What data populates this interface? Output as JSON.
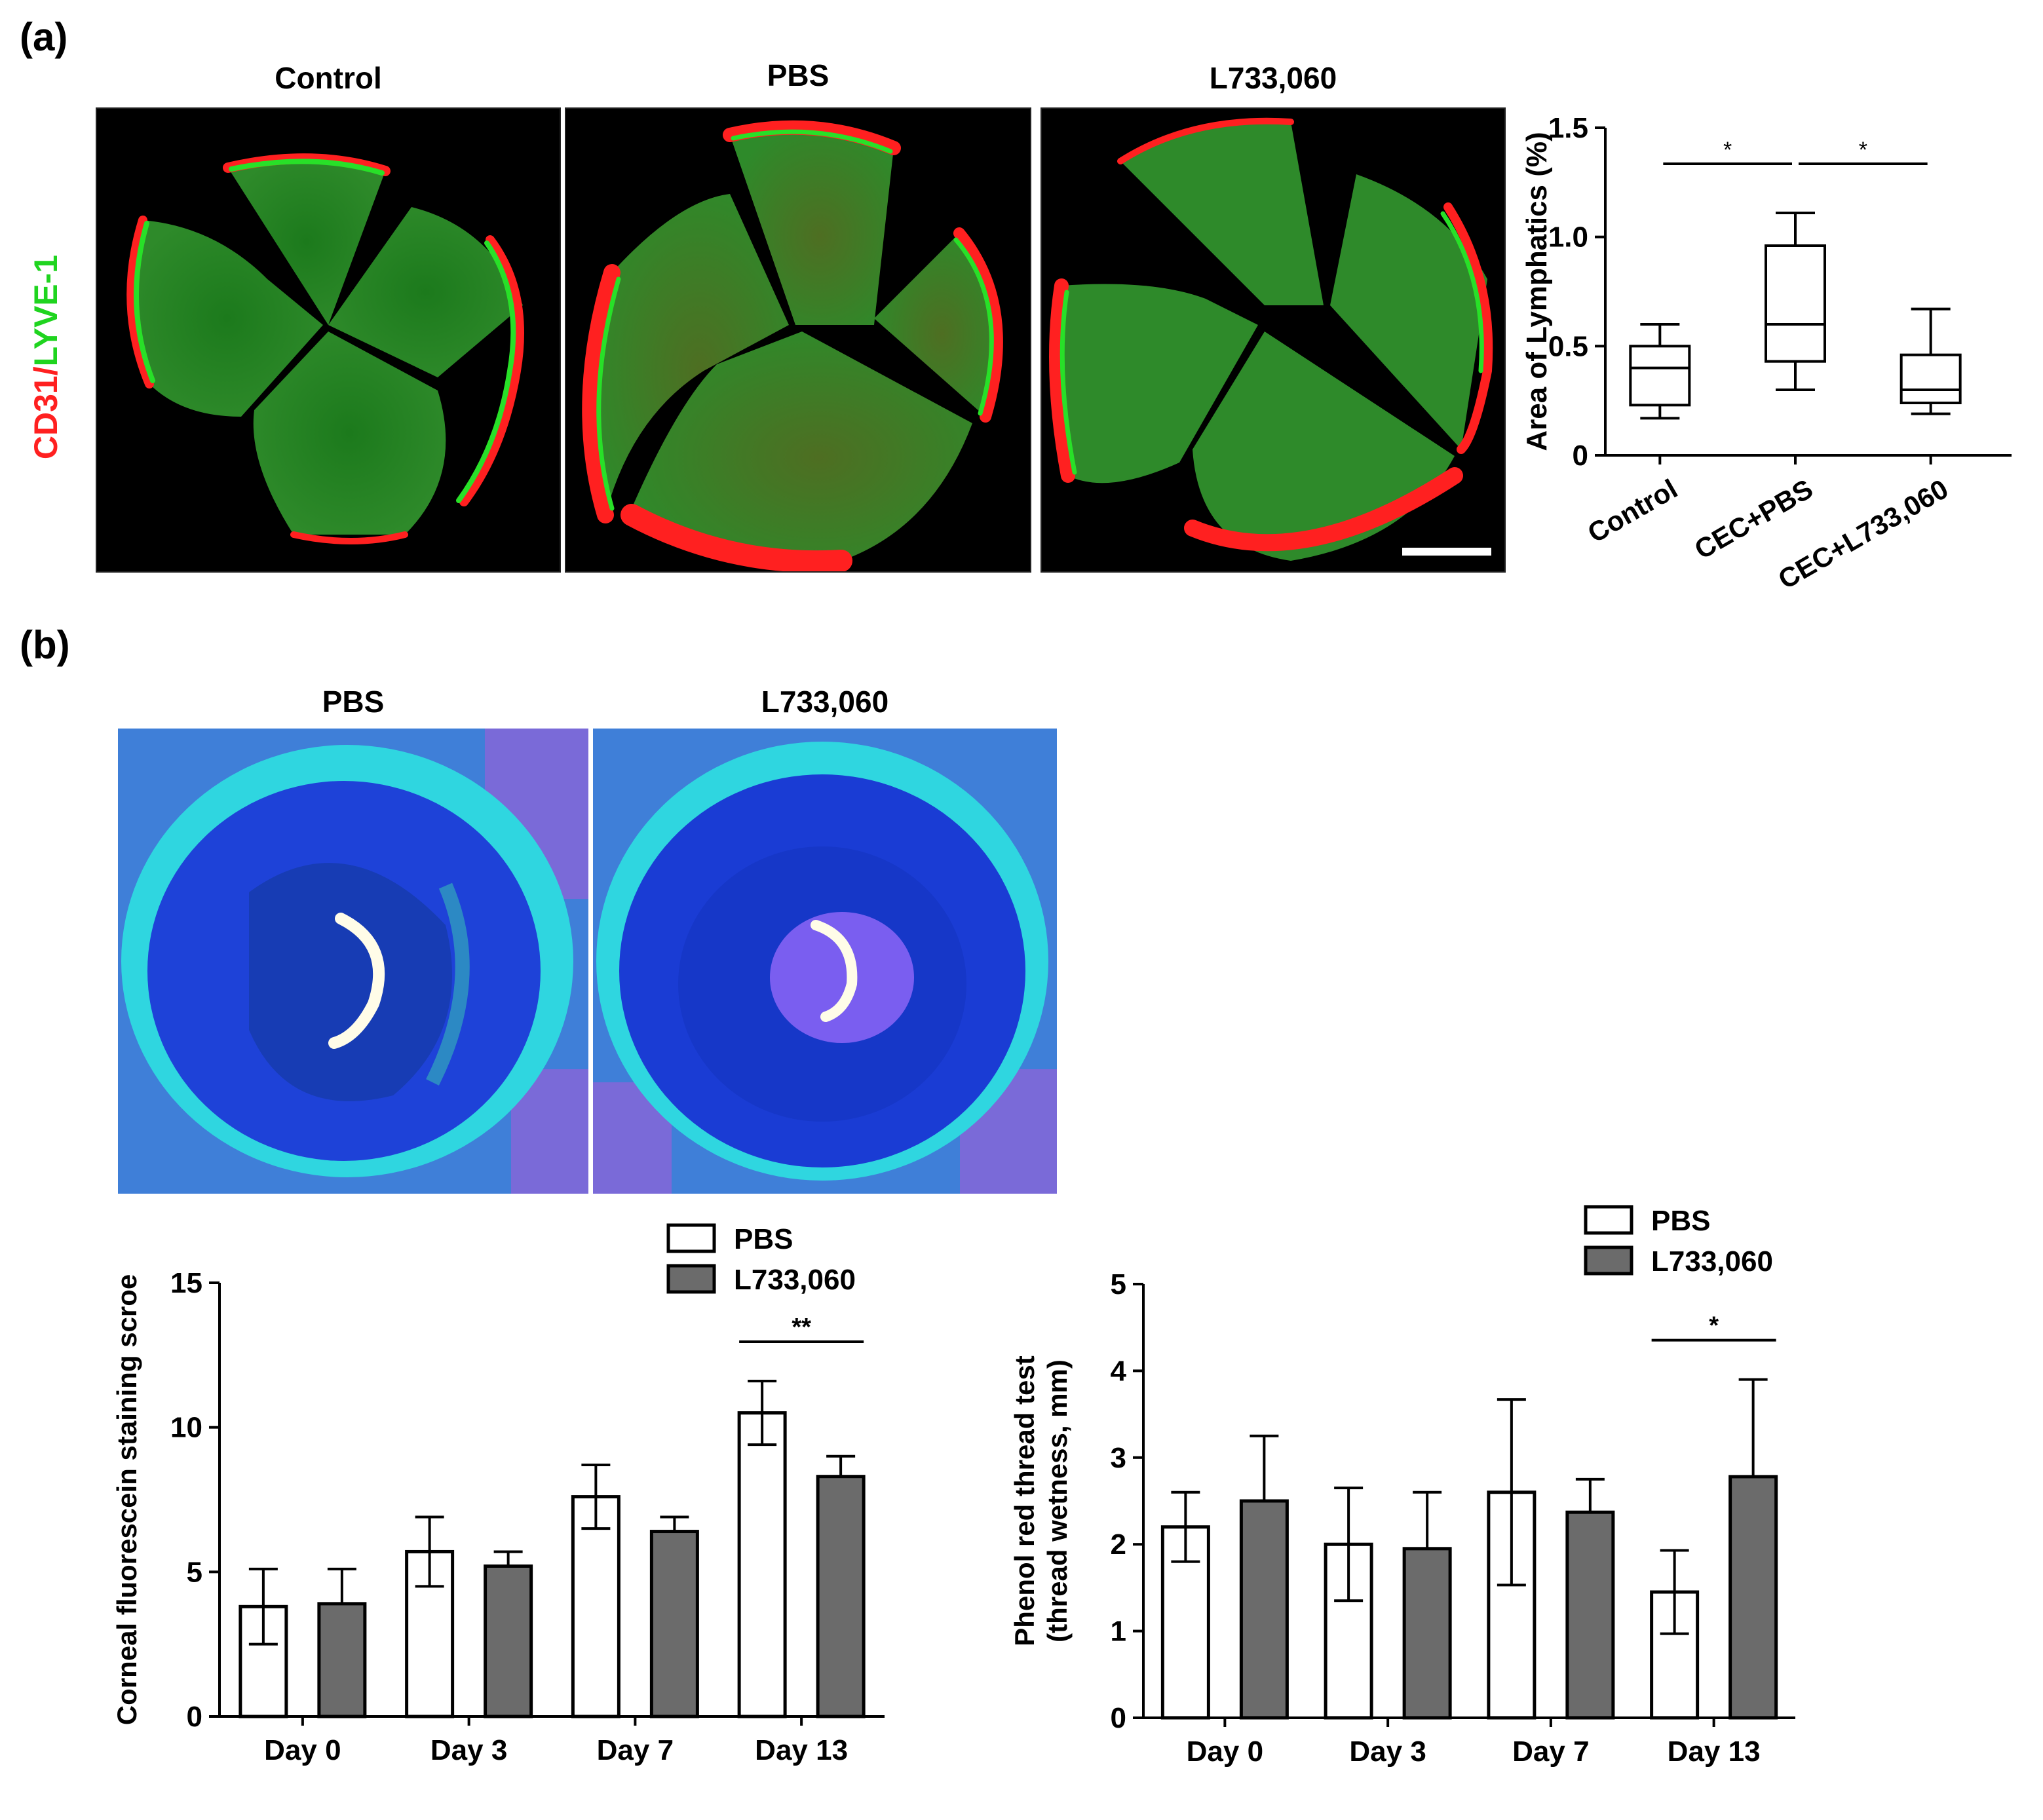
{
  "panels": {
    "a": {
      "letter": "(a)",
      "stain_label": {
        "part1": "CD31",
        "sep": "/",
        "part2": "LYVE-1"
      },
      "colors": {
        "cd31": "#ff2020",
        "lyve1": "#1fd41f"
      },
      "images": [
        {
          "title": "Control"
        },
        {
          "title": "PBS"
        },
        {
          "title": "L733,060"
        }
      ]
    },
    "b": {
      "letter": "(b)",
      "images": [
        {
          "title": "PBS"
        },
        {
          "title": "L733,060"
        }
      ]
    }
  },
  "chart_data": [
    {
      "type": "box",
      "ylabel": "Area of Lymphatics (%)",
      "ylim": [
        0,
        1.5
      ],
      "yticks": [
        "0",
        "0.5",
        "1.0",
        "1.5"
      ],
      "categories": [
        "Control",
        "CEC+PBS",
        "CEC+L733,060"
      ],
      "boxes": [
        {
          "min": 0.17,
          "q1": 0.23,
          "median": 0.4,
          "q3": 0.5,
          "max": 0.6
        },
        {
          "min": 0.3,
          "q1": 0.43,
          "median": 0.6,
          "q3": 0.96,
          "max": 1.11
        },
        {
          "min": 0.19,
          "q1": 0.24,
          "median": 0.3,
          "q3": 0.46,
          "max": 0.67
        }
      ],
      "significance": [
        {
          "from": 0,
          "to": 1,
          "label": "*"
        },
        {
          "from": 1,
          "to": 2,
          "label": "*"
        }
      ]
    },
    {
      "type": "bar",
      "ylabel": "Corneal fluorescein staining scroe",
      "ylim": [
        0,
        15
      ],
      "yticks": [
        "0",
        "5",
        "10",
        "15"
      ],
      "categories": [
        "Day 0",
        "Day 3",
        "Day 7",
        "Day 13"
      ],
      "series": [
        {
          "name": "PBS",
          "color": "#ffffff",
          "values": [
            3.8,
            5.7,
            7.6,
            10.5
          ],
          "errors": [
            1.3,
            1.2,
            1.1,
            1.1
          ]
        },
        {
          "name": "L733,060",
          "color": "#6b6b6b",
          "values": [
            3.9,
            5.2,
            6.4,
            8.3
          ],
          "errors": [
            1.2,
            0.5,
            0.5,
            0.7
          ]
        }
      ],
      "significance": [
        {
          "category": 3,
          "label": "**"
        }
      ]
    },
    {
      "type": "bar",
      "ylabel": "Phenol red thread test",
      "ylabel2": "(thread wetness, mm)",
      "ylim": [
        0,
        5
      ],
      "yticks": [
        "0",
        "1",
        "2",
        "3",
        "4",
        "5"
      ],
      "categories": [
        "Day 0",
        "Day 3",
        "Day 7",
        "Day 13"
      ],
      "series": [
        {
          "name": "PBS",
          "color": "#ffffff",
          "values": [
            2.2,
            2.0,
            2.6,
            1.45
          ],
          "errors": [
            0.4,
            0.65,
            1.07,
            0.48
          ]
        },
        {
          "name": "L733,060",
          "color": "#6b6b6b",
          "values": [
            2.5,
            1.95,
            2.37,
            2.78
          ],
          "errors": [
            0.75,
            0.65,
            0.38,
            1.12
          ]
        }
      ],
      "significance": [
        {
          "category": 3,
          "label": "*"
        }
      ]
    }
  ]
}
